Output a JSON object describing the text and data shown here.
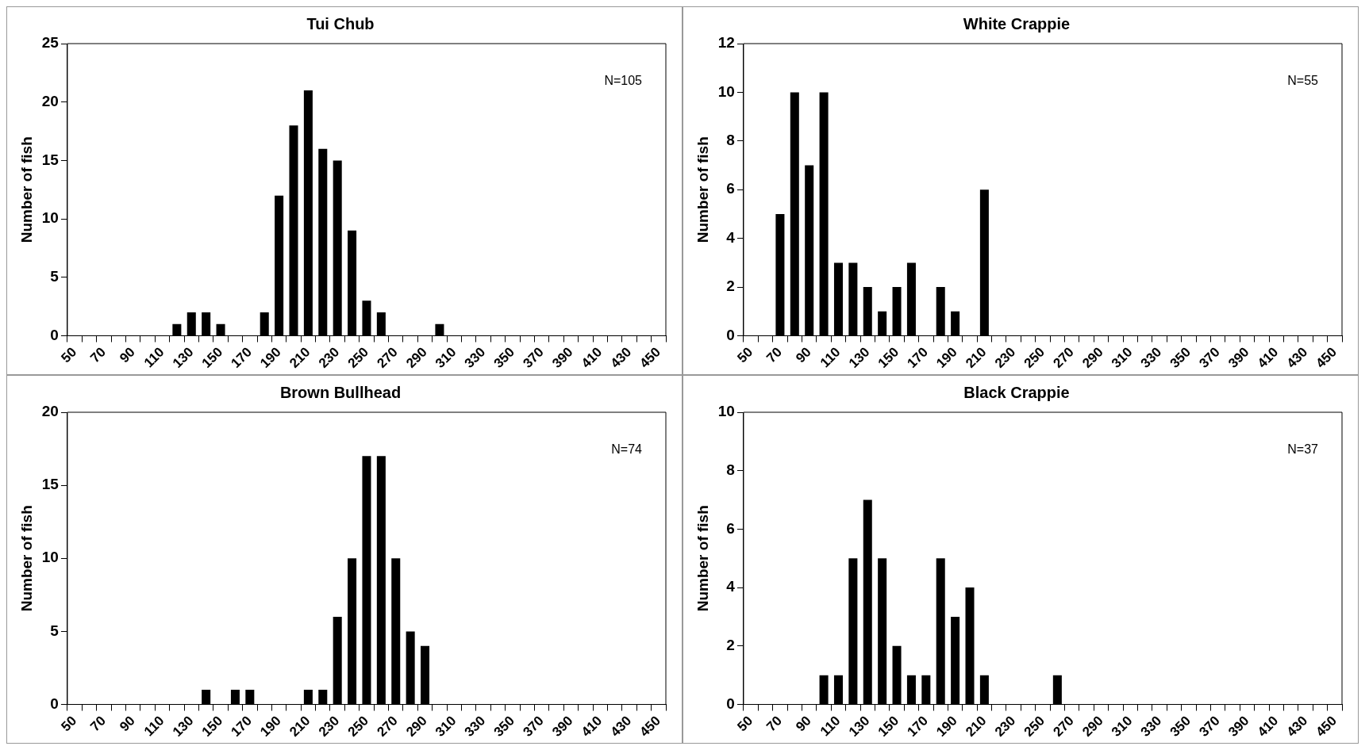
{
  "chart_data": [
    {
      "type": "bar",
      "title": "Tui Chub",
      "ylabel": "Number of fish",
      "categories": [
        "50",
        null,
        "70",
        null,
        "90",
        null,
        "110",
        null,
        "130",
        null,
        "150",
        null,
        "170",
        null,
        "190",
        null,
        "210",
        null,
        "230",
        null,
        "250",
        null,
        "270",
        null,
        "290",
        null,
        "310",
        null,
        "330",
        null,
        "350",
        null,
        "370",
        null,
        "390",
        null,
        "410",
        null,
        "430",
        null,
        "450"
      ],
      "values": [
        0,
        0,
        0,
        0,
        0,
        0,
        0,
        1,
        2,
        2,
        1,
        0,
        0,
        2,
        12,
        18,
        21,
        16,
        15,
        9,
        3,
        2,
        0,
        0,
        0,
        1,
        0,
        0,
        0,
        0,
        0,
        0,
        0,
        0,
        0,
        0,
        0,
        0,
        0,
        0,
        0
      ],
      "color": "#000000",
      "ylim": [
        0,
        25
      ],
      "yticks": [
        0,
        5,
        10,
        15,
        20,
        25
      ],
      "grid": false,
      "annotations": [
        "N=105"
      ]
    },
    {
      "type": "bar",
      "title": "White Crappie",
      "ylabel": "Number of fish",
      "categories": [
        "50",
        null,
        "70",
        null,
        "90",
        null,
        "110",
        null,
        "130",
        null,
        "150",
        null,
        "170",
        null,
        "190",
        null,
        "210",
        null,
        "230",
        null,
        "250",
        null,
        "270",
        null,
        "290",
        null,
        "310",
        null,
        "330",
        null,
        "350",
        null,
        "370",
        null,
        "390",
        null,
        "410",
        null,
        "430",
        null,
        "450"
      ],
      "values": [
        0,
        0,
        5,
        10,
        7,
        10,
        3,
        3,
        2,
        1,
        2,
        3,
        0,
        2,
        1,
        0,
        6,
        0,
        0,
        0,
        0,
        0,
        0,
        0,
        0,
        0,
        0,
        0,
        0,
        0,
        0,
        0,
        0,
        0,
        0,
        0,
        0,
        0,
        0,
        0,
        0
      ],
      "color": "#000000",
      "ylim": [
        0,
        12
      ],
      "yticks": [
        0,
        2,
        4,
        6,
        8,
        10,
        12
      ],
      "grid": false,
      "annotations": [
        "N=55"
      ]
    },
    {
      "type": "bar",
      "title": "Brown Bullhead",
      "ylabel": "Number of fish",
      "categories": [
        "50",
        null,
        "70",
        null,
        "90",
        null,
        "110",
        null,
        "130",
        null,
        "150",
        null,
        "170",
        null,
        "190",
        null,
        "210",
        null,
        "230",
        null,
        "250",
        null,
        "270",
        null,
        "290",
        null,
        "310",
        null,
        "330",
        null,
        "350",
        null,
        "370",
        null,
        "390",
        null,
        "410",
        null,
        "430",
        null,
        "450"
      ],
      "values": [
        0,
        0,
        0,
        0,
        0,
        0,
        0,
        0,
        0,
        1,
        0,
        1,
        1,
        0,
        0,
        0,
        1,
        1,
        6,
        10,
        17,
        17,
        10,
        5,
        4,
        0,
        0,
        0,
        0,
        0,
        0,
        0,
        0,
        0,
        0,
        0,
        0,
        0,
        0,
        0,
        0
      ],
      "color": "#000000",
      "ylim": [
        0,
        20
      ],
      "yticks": [
        0,
        5,
        10,
        15,
        20
      ],
      "grid": false,
      "annotations": [
        "N=74"
      ]
    },
    {
      "type": "bar",
      "title": "Black Crappie",
      "ylabel": "Number of fish",
      "categories": [
        "50",
        null,
        "70",
        null,
        "90",
        null,
        "110",
        null,
        "130",
        null,
        "150",
        null,
        "170",
        null,
        "190",
        null,
        "210",
        null,
        "230",
        null,
        "250",
        null,
        "270",
        null,
        "290",
        null,
        "310",
        null,
        "330",
        null,
        "350",
        null,
        "370",
        null,
        "390",
        null,
        "410",
        null,
        "430",
        null,
        "450"
      ],
      "values": [
        0,
        0,
        0,
        0,
        0,
        1,
        1,
        5,
        7,
        5,
        2,
        1,
        1,
        5,
        3,
        4,
        1,
        0,
        0,
        0,
        0,
        1,
        0,
        0,
        0,
        0,
        0,
        0,
        0,
        0,
        0,
        0,
        0,
        0,
        0,
        0,
        0,
        0,
        0,
        0,
        0
      ],
      "color": "#000000",
      "ylim": [
        0,
        10
      ],
      "yticks": [
        0,
        2,
        4,
        6,
        8,
        10
      ],
      "grid": false,
      "annotations": [
        "N=37"
      ]
    }
  ]
}
